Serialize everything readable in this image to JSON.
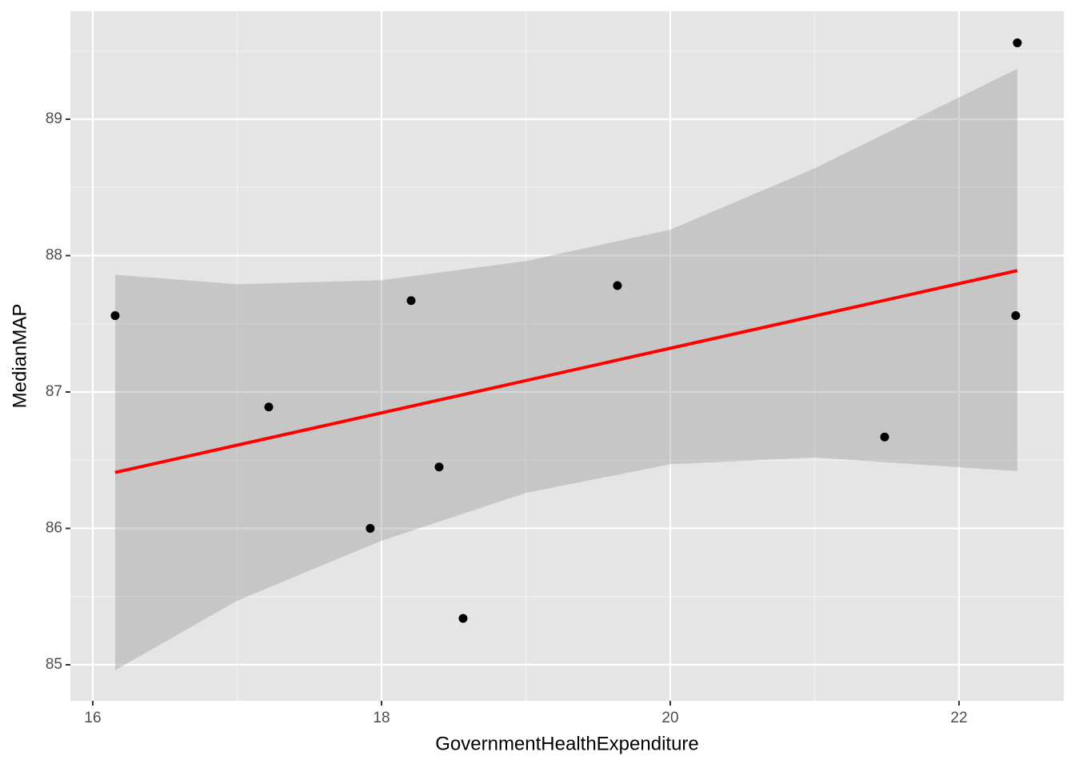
{
  "chart_data": {
    "type": "scatter",
    "x_label": "GovernmentHealthExpenditure",
    "y_label": "MedianMAP",
    "x": [
      16.155,
      17.219,
      17.922,
      18.205,
      18.399,
      18.565,
      19.634,
      21.485,
      22.393,
      22.404
    ],
    "values": [
      87.56,
      86.89,
      86.0,
      87.67,
      86.45,
      85.34,
      87.78,
      86.67,
      87.56,
      89.56
    ],
    "color": "#000000",
    "fit": {
      "x": [
        16.155,
        22.404
      ],
      "values": [
        86.41,
        87.89
      ],
      "color": "#ff0000"
    },
    "band": {
      "x": [
        16.155,
        17,
        18,
        19,
        20,
        21,
        22.404
      ],
      "upper": [
        87.86,
        87.79,
        87.82,
        87.96,
        88.19,
        88.64,
        89.37
      ],
      "lower": [
        84.96,
        85.47,
        85.91,
        86.26,
        86.47,
        86.52,
        86.42
      ],
      "color": "#999999"
    },
    "xlim": [
      15.845,
      22.726
    ],
    "ylim": [
      84.736,
      89.792
    ],
    "xticks": [
      16,
      18,
      20,
      22
    ],
    "yticks": [
      85,
      86,
      87,
      88,
      89
    ],
    "xminor": [
      17,
      19,
      21
    ],
    "yminor": [
      85.5,
      86.5,
      87.5,
      88.5,
      89.5
    ],
    "grid": true
  }
}
